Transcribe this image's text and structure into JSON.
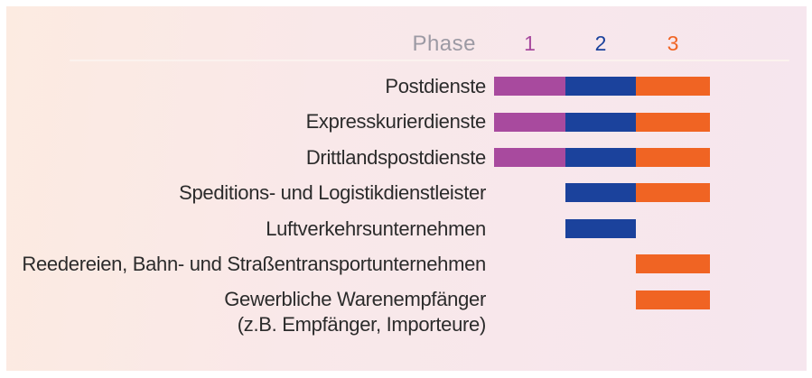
{
  "panel": {
    "background_left": "#fcebe1",
    "background_right": "#f6e6ee",
    "divider_color": "#fbf2ee"
  },
  "header": {
    "phase_label_color": "#9c9aa4"
  },
  "chart_data": {
    "type": "bar",
    "subtype": "phase-timeline",
    "orientation": "horizontal",
    "axis_header": "Phase",
    "grid": false,
    "legend_position": "top",
    "text_color": "#2b2b2b",
    "phases": [
      {
        "label": "1",
        "color": "#a84a9e"
      },
      {
        "label": "2",
        "color": "#1b429c"
      },
      {
        "label": "3",
        "color": "#f06423"
      }
    ],
    "rows": [
      {
        "label": "Postdienste",
        "sublabel": "",
        "phases": [
          1,
          2,
          3
        ]
      },
      {
        "label": "Expresskurierdienste",
        "sublabel": "",
        "phases": [
          1,
          2,
          3
        ]
      },
      {
        "label": "Drittlandspostdienste",
        "sublabel": "",
        "phases": [
          1,
          2,
          3
        ]
      },
      {
        "label": "Speditions- und Logistikdienstleister",
        "sublabel": "",
        "phases": [
          2,
          3
        ]
      },
      {
        "label": "Luftverkehrsunternehmen",
        "sublabel": "",
        "phases": [
          2
        ]
      },
      {
        "label": "Reedereien, Bahn- und Straßentransportunternehmen",
        "sublabel": "",
        "phases": [
          3
        ]
      },
      {
        "label": "Gewerbliche Warenempfänger",
        "sublabel": "(z.B. Empfänger, Importeure)",
        "phases": [
          3
        ]
      }
    ]
  }
}
